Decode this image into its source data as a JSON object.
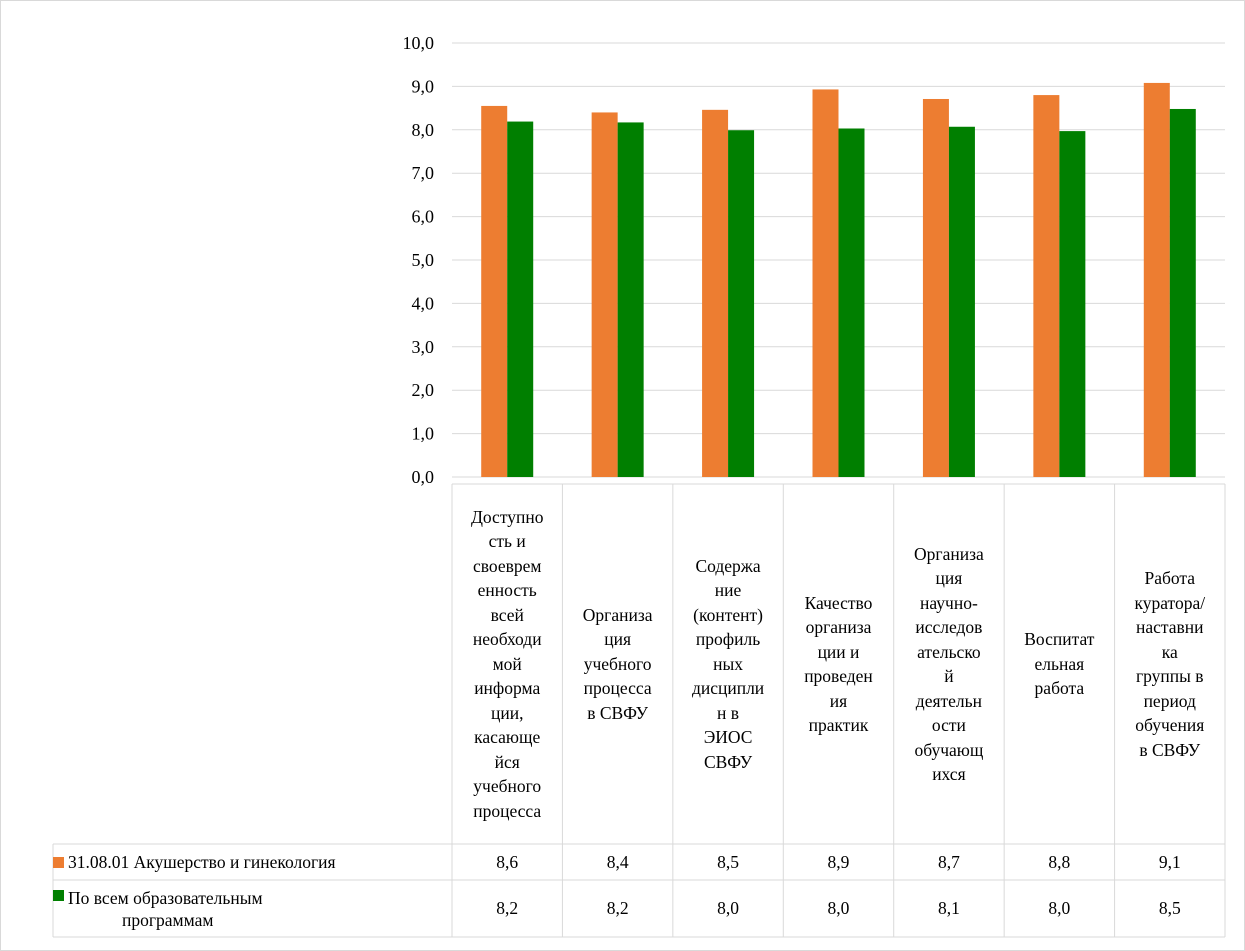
{
  "chart_data": {
    "type": "bar",
    "categories": [
      "Доступно\nсть и\nсвоеврем\nенность\nвсей\nнеобходи\nмой\nинформа\nции,\nкасающе\nйся\nучебного\nпроцесса",
      "Организа\nция\nучебного\nпроцесса\nв СВФУ",
      "Содержа\nние\n(контент)\nпрофиль\nных\nдисципли\nн в\nЭИОС\nСВФУ",
      "Качество\nорганиза\nции и\nпроведен\nия\nпрактик",
      "Организа\nция\nнаучно-\nисследов\nательско\nй\nдеятельн\nости\nобучающ\nихся",
      "Воспитат\nельная\nработа",
      "Работа\nкуратора/\nнаставни\nка\nгруппы в\nпериод\nобучения\nв СВФУ"
    ],
    "series": [
      {
        "name": "31.08.01 Акушерство и гинекология",
        "color": "#ED7D31",
        "values": [
          8.55,
          8.4,
          8.46,
          8.93,
          8.71,
          8.8,
          9.08
        ],
        "labels": [
          "8,6",
          "8,4",
          "8,5",
          "8,9",
          "8,7",
          "8,8",
          "9,1"
        ]
      },
      {
        "name": "По всем образовательным\nпрограммам",
        "color": "#007F00",
        "values": [
          8.19,
          8.17,
          7.99,
          8.03,
          8.07,
          7.97,
          8.48
        ],
        "labels": [
          "8,2",
          "8,2",
          "8,0",
          "8,0",
          "8,1",
          "8,0",
          "8,5"
        ]
      }
    ],
    "ylim": [
      0,
      10
    ],
    "y_tick_labels": [
      "0,0",
      "1,0",
      "2,0",
      "3,0",
      "4,0",
      "5,0",
      "6,0",
      "7,0",
      "8,0",
      "9,0",
      "10,0"
    ],
    "grid": true,
    "legend": "data table below chart"
  }
}
